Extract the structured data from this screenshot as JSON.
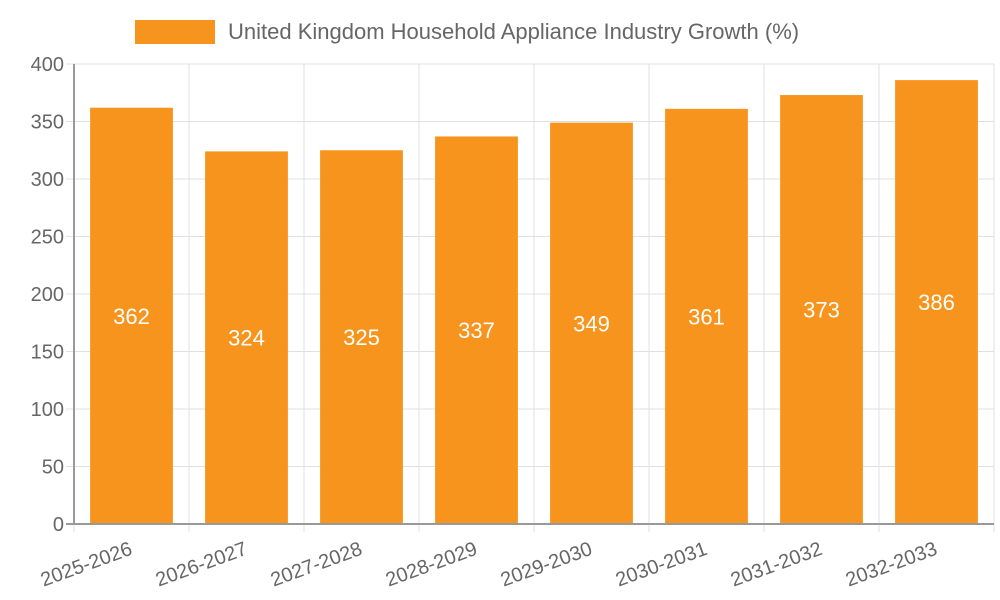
{
  "chart_data": {
    "type": "bar",
    "title": "",
    "legend_position": "top-center",
    "xlabel": "",
    "ylabel": "",
    "categories": [
      "2025-2026",
      "2026-2027",
      "2027-2028",
      "2028-2029",
      "2029-2030",
      "2030-2031",
      "2031-2032",
      "2032-2033"
    ],
    "series": [
      {
        "name": "United Kingdom Household Appliance Industry Growth (%)",
        "values": [
          362,
          324,
          325,
          337,
          349,
          361,
          373,
          386
        ]
      }
    ],
    "ylim": [
      0,
      400
    ],
    "yticks": [
      "0",
      "50",
      "100",
      "150",
      "200",
      "250",
      "300",
      "350",
      "400"
    ],
    "grid": true,
    "colors": {
      "bar": "#f7941d",
      "grid": "#e0e0e0",
      "axis": "#999999",
      "label": "#ffffff"
    }
  }
}
